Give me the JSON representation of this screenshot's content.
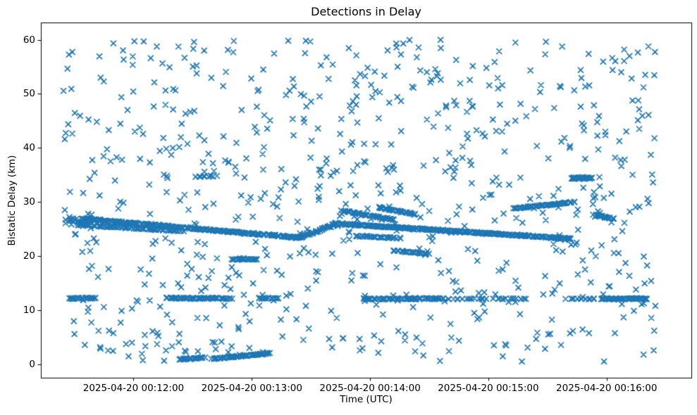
{
  "figure": {
    "title": "Detections in Delay",
    "xlabel": "Time (UTC)",
    "ylabel": "Bistatic Delay (km)"
  },
  "chart_data": {
    "type": "scatter",
    "title": "Detections in Delay",
    "xlabel": "Time (UTC)",
    "ylabel": "Bistatic Delay (km)",
    "marker": "x",
    "marker_color": "#1f77b4",
    "marker_size_px": 7,
    "grid": false,
    "legend": false,
    "x_axis": {
      "t0_utc": "2025-04-20 00:11:30",
      "xlim_seconds": [
        -17,
        313
      ],
      "ticks": [
        {
          "t": 30,
          "label": "2025-04-20 00:12:00"
        },
        {
          "t": 90,
          "label": "2025-04-20 00:13:00"
        },
        {
          "t": 150,
          "label": "2025-04-20 00:14:00"
        },
        {
          "t": 210,
          "label": "2025-04-20 00:15:00"
        },
        {
          "t": 270,
          "label": "2025-04-20 00:16:00"
        }
      ]
    },
    "y_axis": {
      "ylim": [
        -2.5,
        63.2
      ],
      "ticks": [
        0,
        10,
        20,
        30,
        40,
        50,
        60
      ]
    },
    "representation": "t = seconds after t0_utc; d = bistatic delay km. Dense detection streaks listed as linear segments; background clutter is uniform seeded noise.",
    "tracks": [
      {
        "id": "main-descent-left",
        "t0": 4,
        "t1": 114,
        "d0": 26.9,
        "d1": 23.4,
        "n": 250,
        "jitter": 0.16
      },
      {
        "id": "main-left-lower",
        "t0": 2,
        "t1": 55,
        "d0": 25.8,
        "d1": 24.6,
        "n": 70,
        "jitter": 0.14
      },
      {
        "id": "main-rise",
        "t0": 114,
        "t1": 133,
        "d0": 23.4,
        "d1": 26.0,
        "n": 40,
        "jitter": 0.14
      },
      {
        "id": "main-descent-right",
        "t0": 133,
        "t1": 252,
        "d0": 26.0,
        "d1": 23.2,
        "n": 280,
        "jitter": 0.16
      },
      {
        "id": "upper-dash-1",
        "t0": 136,
        "t1": 162,
        "d0": 28.4,
        "d1": 26.7,
        "n": 45,
        "jitter": 0.12
      },
      {
        "id": "upper-dash-2",
        "t0": 154,
        "t1": 173,
        "d0": 29.0,
        "d1": 27.7,
        "n": 35,
        "jitter": 0.12
      },
      {
        "id": "rising-29-30",
        "t0": 223,
        "t1": 254,
        "d0": 28.8,
        "d1": 30.0,
        "n": 55,
        "jitter": 0.12
      },
      {
        "id": "flat-34p5-left",
        "t0": 62,
        "t1": 72,
        "d0": 34.8,
        "d1": 34.8,
        "n": 10,
        "jitter": 0.2
      },
      {
        "id": "flat-34p5-right",
        "t0": 252,
        "t1": 262,
        "d0": 34.4,
        "d1": 34.5,
        "n": 40,
        "jitter": 0.18
      },
      {
        "id": "short-27",
        "t0": 264,
        "t1": 273,
        "d0": 27.6,
        "d1": 26.9,
        "n": 22,
        "jitter": 0.1
      },
      {
        "id": "flat-19p5",
        "t0": 80,
        "t1": 93,
        "d0": 19.4,
        "d1": 19.4,
        "n": 22,
        "jitter": 0.1
      },
      {
        "id": "flat-20p6",
        "t0": 162,
        "t1": 180,
        "d0": 21.0,
        "d1": 20.4,
        "n": 28,
        "jitter": 0.1
      },
      {
        "id": "low-dash-23p5",
        "t0": 143,
        "t1": 165,
        "d0": 23.7,
        "d1": 23.3,
        "n": 30,
        "jitter": 0.12
      },
      {
        "id": "left-cluster",
        "t0": -4,
        "t1": 8,
        "d0": 26.5,
        "d1": 26.5,
        "n": 28,
        "jitter": 1.5
      },
      {
        "id": "band12-a",
        "t0": -3,
        "t1": 11,
        "d0": 12.2,
        "d1": 12.2,
        "n": 24,
        "jitter": 0.15
      },
      {
        "id": "band12-b",
        "t0": 47,
        "t1": 79,
        "d0": 12.2,
        "d1": 12.2,
        "n": 60,
        "jitter": 0.15
      },
      {
        "id": "band12-c",
        "t0": 93,
        "t1": 104,
        "d0": 12.2,
        "d1": 12.2,
        "n": 16,
        "jitter": 0.15
      },
      {
        "id": "band12-d",
        "t0": 146,
        "t1": 187,
        "d0": 12.1,
        "d1": 12.1,
        "n": 75,
        "jitter": 0.15
      },
      {
        "id": "band12-e",
        "t0": 189,
        "t1": 209,
        "d0": 12.1,
        "d1": 12.1,
        "n": 14,
        "jitter": 0.12
      },
      {
        "id": "band12-f",
        "t0": 213,
        "t1": 230,
        "d0": 12.1,
        "d1": 12.1,
        "n": 14,
        "jitter": 0.12
      },
      {
        "id": "band12-g",
        "t0": 250,
        "t1": 264,
        "d0": 12.1,
        "d1": 12.1,
        "n": 12,
        "jitter": 0.12
      },
      {
        "id": "band12-h",
        "t0": 267,
        "t1": 291,
        "d0": 12.1,
        "d1": 12.1,
        "n": 55,
        "jitter": 0.15
      },
      {
        "id": "low-1",
        "t0": 53,
        "t1": 66,
        "d0": 0.9,
        "d1": 1.2,
        "n": 26,
        "jitter": 0.12
      },
      {
        "id": "low-2",
        "t0": 70,
        "t1": 99,
        "d0": 1.0,
        "d1": 2.0,
        "n": 60,
        "jitter": 0.12
      }
    ],
    "noise": {
      "count": 730,
      "seed": 42,
      "t_range": [
        -6,
        296
      ],
      "d_range": [
        0.5,
        60.0
      ]
    }
  }
}
